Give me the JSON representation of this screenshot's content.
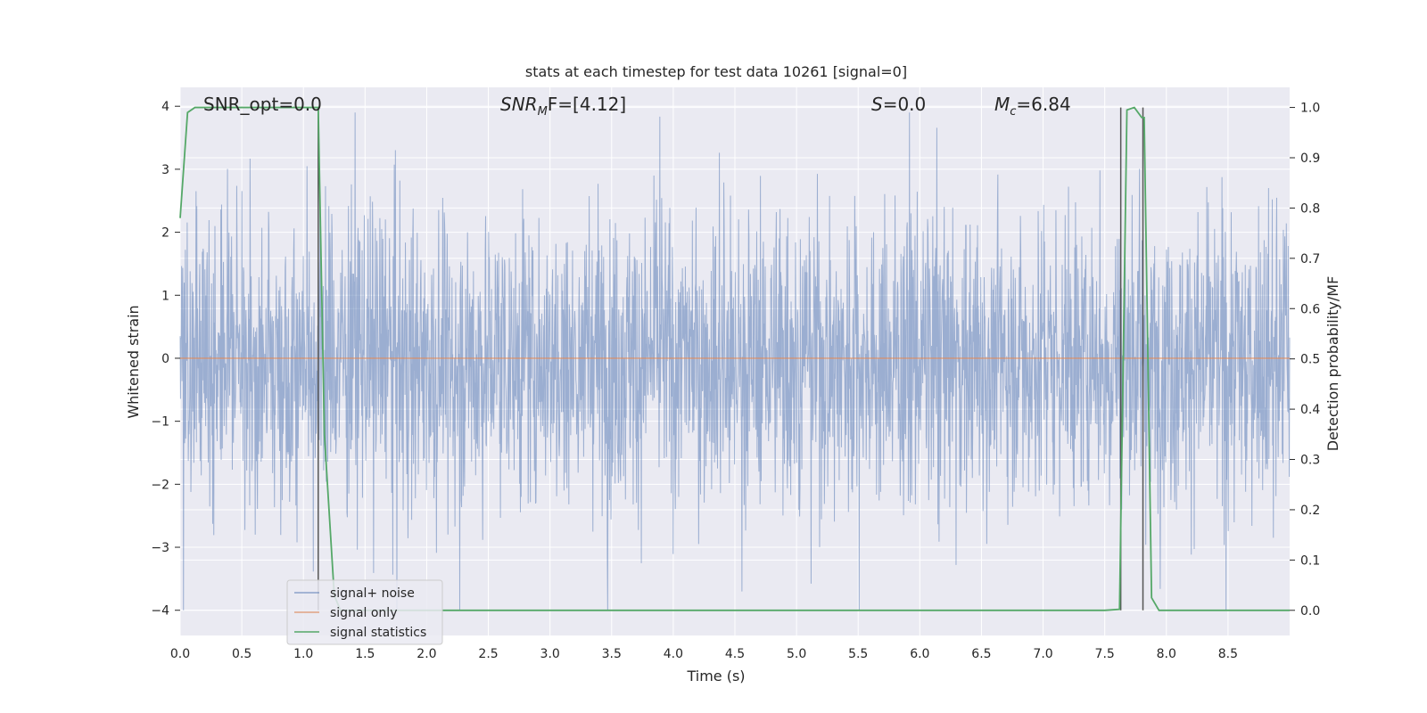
{
  "chart_data": {
    "type": "line",
    "title": "stats at each timestep for test data 10261 [signal=0]",
    "xlabel": "Time (s)",
    "ylabel": "Whitened strain",
    "y2label": "Detection probability/MF",
    "xlim": [
      0.0,
      9.0
    ],
    "ylim": [
      -4.4,
      4.3
    ],
    "y2lim": [
      -0.05,
      1.04
    ],
    "xticks": [
      "0.0",
      "0.5",
      "1.0",
      "1.5",
      "2.0",
      "2.5",
      "3.0",
      "3.5",
      "4.0",
      "4.5",
      "5.0",
      "5.5",
      "6.0",
      "6.5",
      "7.0",
      "7.5",
      "8.0",
      "8.5"
    ],
    "yticks": [
      "−4",
      "−3",
      "−2",
      "−1",
      "0",
      "1",
      "2",
      "3",
      "4"
    ],
    "y2ticks": [
      "0.0",
      "0.1",
      "0.2",
      "0.3",
      "0.4",
      "0.5",
      "0.6",
      "0.7",
      "0.8",
      "0.9",
      "1.0"
    ],
    "grid": true,
    "legend_position": "lower-left",
    "background": "#eaeaf2",
    "annotations": {
      "snr_opt": "SNR_opt=0.0",
      "snr_mf_prefix": "SNR",
      "snr_mf_sub": "M",
      "snr_mf_suffix": "F=[4.12]",
      "s_prefix": "S",
      "s_suffix": "=0.0",
      "mc_prefix": "M",
      "mc_sub": "c",
      "mc_suffix": "=6.84"
    },
    "series": [
      {
        "name": "signal+ noise",
        "color": "#4c72b0",
        "style": "noise",
        "y_range": [
          -4.0,
          3.9
        ],
        "typical_amplitude": 1.6
      },
      {
        "name": "signal only",
        "color": "#dd8452",
        "x": [
          0.0,
          9.0
        ],
        "y": [
          0.0,
          0.0
        ]
      },
      {
        "name": "signal statistics",
        "color": "#55a868",
        "axis": "right",
        "x": [
          0.0,
          0.06,
          0.12,
          0.2,
          0.5,
          0.8,
          1.0,
          1.12,
          1.17,
          1.25,
          1.3,
          2.0,
          3.0,
          4.0,
          5.0,
          6.0,
          7.0,
          7.5,
          7.62,
          7.68,
          7.74,
          7.8,
          7.82,
          7.88,
          7.94,
          8.5,
          9.0
        ],
        "y": [
          0.78,
          0.99,
          1.0,
          1.0,
          1.0,
          1.0,
          1.0,
          1.0,
          0.35,
          0.03,
          0.0,
          0.0,
          0.0,
          0.0,
          0.0,
          0.0,
          0.0,
          0.0,
          0.002,
          0.995,
          1.0,
          0.98,
          0.98,
          0.025,
          0.0,
          0.0,
          0.0
        ]
      }
    ],
    "vlines": {
      "color": "#555555",
      "x": [
        1.12,
        7.63,
        7.81
      ],
      "y2_from": 0.0,
      "y2_to": 1.0
    }
  }
}
